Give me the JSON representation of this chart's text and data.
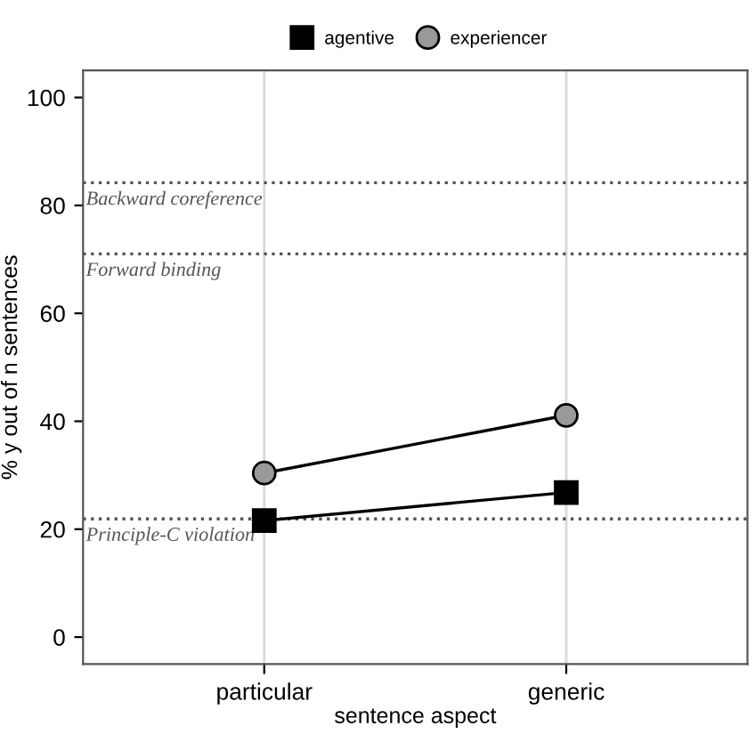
{
  "chart_data": {
    "type": "line",
    "categories": [
      "particular",
      "generic"
    ],
    "xlabel": "sentence aspect",
    "ylabel": "% y out of n sentences",
    "series": [
      {
        "name": "agentive",
        "color": "#000000",
        "marker": "square",
        "values": [
          21.6,
          26.8
        ]
      },
      {
        "name": "experiencer",
        "color": "#999999",
        "marker": "circle",
        "values": [
          30.4,
          41.1
        ]
      }
    ],
    "ylim": [
      -5,
      105
    ],
    "yticks": [
      0,
      20,
      40,
      60,
      80,
      100
    ],
    "grid": "x",
    "legend": "top",
    "line_style": "solid",
    "ref_lines": [
      {
        "axis": "y",
        "value": 84.2,
        "label": "Backward coreference",
        "line_style": "dotted",
        "color": "#555555"
      },
      {
        "axis": "y",
        "value": 71,
        "label": "Forward binding",
        "line_style": "dotted",
        "color": "#555555"
      },
      {
        "axis": "y",
        "value": 21.9,
        "label": "Principle-C violation",
        "line_style": "dotted",
        "color": "#555555"
      }
    ]
  }
}
